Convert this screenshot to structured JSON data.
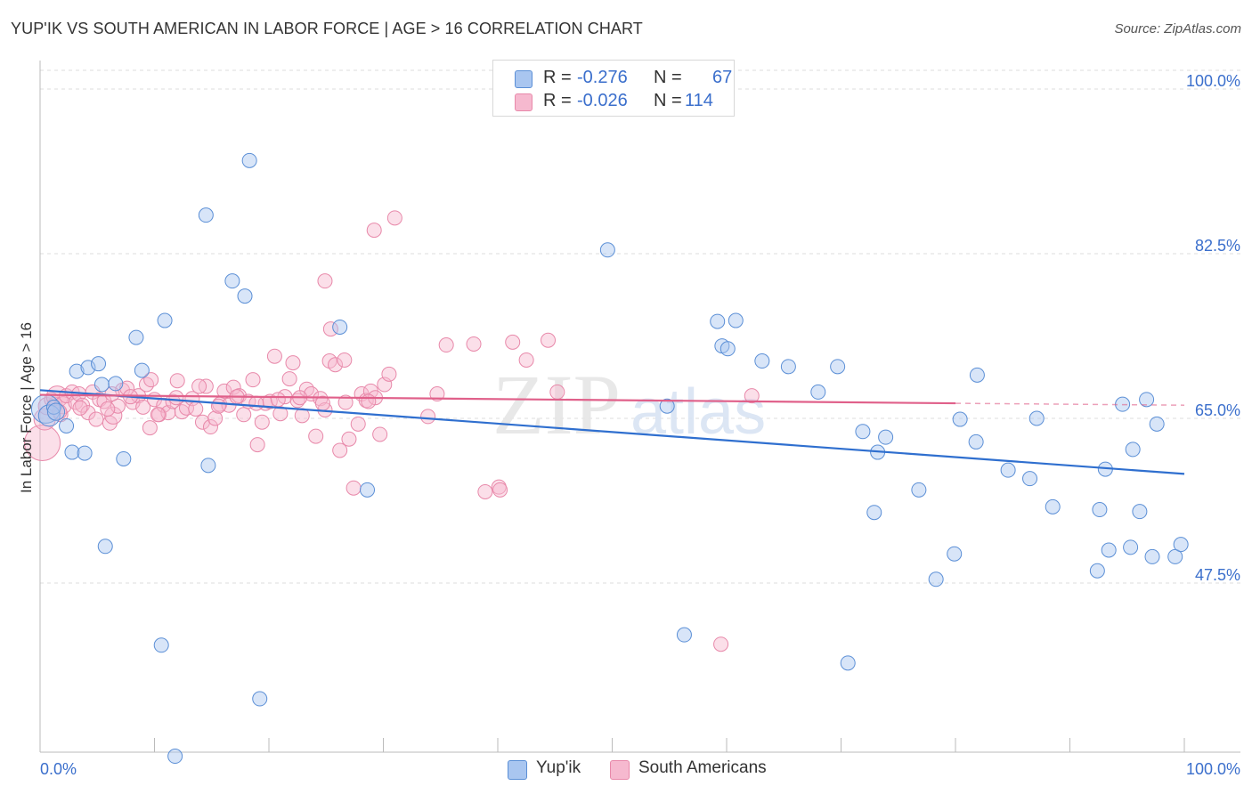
{
  "title": "YUP'IK VS SOUTH AMERICAN IN LABOR FORCE | AGE > 16 CORRELATION CHART",
  "source": "Source: ZipAtlas.com",
  "legend": {
    "rows": [
      {
        "r_label": "R =",
        "r_value": "-0.276",
        "n_label": "N =",
        "n_value": "67"
      },
      {
        "r_label": "R =",
        "r_value": "-0.026",
        "n_label": "N =",
        "n_value": "114"
      }
    ]
  },
  "bottom_legend": {
    "series1": "Yup'ik",
    "series2": "South Americans"
  },
  "watermark": {
    "zip": "ZIP",
    "atlas": "atlas"
  },
  "colors": {
    "blue_fill": "#a9c6f0",
    "blue_stroke": "#5b8fd6",
    "blue_line": "#2f6fcf",
    "pink_fill": "#f6b9cf",
    "pink_stroke": "#e889aa",
    "pink_line": "#e0608a",
    "axis_label": "#3b6fcc",
    "grid": "#dddddd"
  },
  "chart_data": {
    "type": "scatter",
    "title": "YUP'IK VS SOUTH AMERICAN IN LABOR FORCE | AGE > 16 CORRELATION CHART",
    "xlabel": "",
    "ylabel": "In Labor Force | Age > 16",
    "xlim": [
      0,
      100
    ],
    "ylim": [
      30,
      102
    ],
    "x_tick_labels": [
      "0.0%",
      "100.0%"
    ],
    "y_ticks": [
      {
        "value": 100,
        "label": "100.0%"
      },
      {
        "value": 82.5,
        "label": "82.5%"
      },
      {
        "value": 65,
        "label": "65.0%"
      },
      {
        "value": 47.5,
        "label": "47.5%"
      }
    ],
    "grid": "horizontal dashed",
    "legend_position": "top-center",
    "series": [
      {
        "name": "Yup'ik",
        "color": "#a9c6f0",
        "trend": {
          "x": [
            0,
            100
          ],
          "y": [
            68.0,
            59.1
          ],
          "style": "solid"
        },
        "points": [
          [
            0.5,
            66.0,
            2
          ],
          [
            0.8,
            65.3,
            1.5
          ],
          [
            1.2,
            66.2,
            1
          ],
          [
            1.4,
            65.7,
            1.2
          ],
          [
            2.3,
            64.2,
            1
          ],
          [
            2.8,
            61.4,
            1
          ],
          [
            3.2,
            70.0,
            1
          ],
          [
            3.9,
            61.3,
            1
          ],
          [
            4.2,
            70.4,
            1
          ],
          [
            5.1,
            70.8,
            1
          ],
          [
            5.4,
            68.6,
            1
          ],
          [
            5.7,
            51.4,
            1
          ],
          [
            6.6,
            68.7,
            1
          ],
          [
            7.3,
            60.7,
            1
          ],
          [
            8.4,
            73.6,
            1
          ],
          [
            8.9,
            70.1,
            1
          ],
          [
            10.9,
            75.4,
            1
          ],
          [
            10.6,
            40.9,
            1
          ],
          [
            11.8,
            29.1,
            1
          ],
          [
            14.5,
            86.6,
            1
          ],
          [
            14.7,
            60.0,
            1
          ],
          [
            16.8,
            79.6,
            1
          ],
          [
            17.9,
            78.0,
            1
          ],
          [
            18.3,
            92.4,
            1
          ],
          [
            19.2,
            35.2,
            1
          ],
          [
            26.2,
            74.7,
            1
          ],
          [
            28.6,
            57.4,
            1
          ],
          [
            41.4,
            100.6,
            1
          ],
          [
            49.6,
            82.9,
            1
          ],
          [
            54.8,
            66.3,
            1
          ],
          [
            56.3,
            42.0,
            1
          ],
          [
            59.2,
            75.3,
            1
          ],
          [
            59.6,
            72.7,
            1
          ],
          [
            60.1,
            72.4,
            1
          ],
          [
            60.8,
            75.4,
            1
          ],
          [
            63.1,
            71.1,
            1
          ],
          [
            65.4,
            70.5,
            1
          ],
          [
            68.0,
            67.8,
            1
          ],
          [
            69.7,
            70.5,
            1
          ],
          [
            70.6,
            39.0,
            1
          ],
          [
            71.9,
            63.6,
            1
          ],
          [
            72.9,
            55.0,
            1
          ],
          [
            73.2,
            61.4,
            1
          ],
          [
            73.9,
            63.0,
            1
          ],
          [
            76.8,
            57.4,
            1
          ],
          [
            78.3,
            47.9,
            1
          ],
          [
            79.9,
            50.6,
            1
          ],
          [
            80.4,
            64.9,
            1
          ],
          [
            81.8,
            62.5,
            1
          ],
          [
            81.9,
            69.6,
            1
          ],
          [
            84.6,
            59.5,
            1
          ],
          [
            86.5,
            58.6,
            1
          ],
          [
            87.1,
            65.0,
            1
          ],
          [
            88.5,
            55.6,
            1
          ],
          [
            92.4,
            48.8,
            1
          ],
          [
            92.6,
            55.3,
            1
          ],
          [
            93.1,
            59.6,
            1
          ],
          [
            93.4,
            51.0,
            1
          ],
          [
            94.6,
            66.5,
            1
          ],
          [
            95.3,
            51.3,
            1
          ],
          [
            95.5,
            61.7,
            1
          ],
          [
            96.1,
            55.1,
            1
          ],
          [
            96.7,
            67.0,
            1
          ],
          [
            97.2,
            50.3,
            1
          ],
          [
            97.6,
            64.4,
            1
          ],
          [
            99.2,
            50.3,
            1
          ],
          [
            99.7,
            51.6,
            1
          ]
        ]
      },
      {
        "name": "South Americans",
        "color": "#f6b9cf",
        "trend": {
          "x": [
            0,
            80,
            100
          ],
          "y": [
            67.5,
            66.6,
            66.4
          ],
          "style": "solid to 80, dashed to 100"
        },
        "points": [
          [
            0.2,
            62.4,
            2.5
          ],
          [
            0.4,
            64.9,
            1.5
          ],
          [
            0.6,
            66.3,
            1.2
          ],
          [
            1.0,
            67.0,
            1
          ],
          [
            1.3,
            66.5,
            1
          ],
          [
            1.5,
            67.3,
            1.5
          ],
          [
            1.8,
            65.4,
            1
          ],
          [
            2.0,
            66.4,
            1.2
          ],
          [
            2.3,
            67.4,
            1
          ],
          [
            2.8,
            67.8,
            1
          ],
          [
            3.1,
            66.7,
            1
          ],
          [
            3.4,
            67.6,
            1
          ],
          [
            3.7,
            66.4,
            1
          ],
          [
            4.2,
            65.6,
            1
          ],
          [
            4.6,
            67.8,
            1
          ],
          [
            4.9,
            64.9,
            1
          ],
          [
            5.2,
            67.0,
            1
          ],
          [
            5.6,
            66.8,
            1
          ],
          [
            6.1,
            64.5,
            1
          ],
          [
            6.4,
            65.3,
            1.2
          ],
          [
            6.8,
            66.3,
            1
          ],
          [
            7.2,
            68.0,
            1
          ],
          [
            7.6,
            68.2,
            1
          ],
          [
            8.1,
            66.7,
            1
          ],
          [
            8.6,
            67.4,
            1
          ],
          [
            9.0,
            66.2,
            1
          ],
          [
            9.3,
            68.6,
            1
          ],
          [
            9.6,
            64.0,
            1
          ],
          [
            10.0,
            67.0,
            1
          ],
          [
            10.4,
            65.4,
            1
          ],
          [
            10.8,
            66.4,
            1
          ],
          [
            11.2,
            65.6,
            1
          ],
          [
            11.6,
            66.8,
            1
          ],
          [
            12.0,
            69.0,
            1
          ],
          [
            12.4,
            65.7,
            1
          ],
          [
            12.8,
            66.1,
            1
          ],
          [
            13.3,
            67.1,
            1
          ],
          [
            13.6,
            66.0,
            1
          ],
          [
            14.2,
            64.6,
            1
          ],
          [
            14.5,
            68.4,
            1
          ],
          [
            14.9,
            64.1,
            1
          ],
          [
            15.3,
            65.0,
            1
          ],
          [
            15.7,
            66.5,
            1
          ],
          [
            16.1,
            67.9,
            1
          ],
          [
            16.5,
            66.4,
            1
          ],
          [
            16.9,
            68.3,
            1
          ],
          [
            17.4,
            67.4,
            1
          ],
          [
            17.8,
            65.4,
            1
          ],
          [
            18.2,
            66.8,
            1
          ],
          [
            18.6,
            69.1,
            1
          ],
          [
            19.0,
            62.2,
            1
          ],
          [
            19.4,
            64.6,
            1
          ],
          [
            19.7,
            66.6,
            1
          ],
          [
            20.1,
            66.8,
            1
          ],
          [
            20.5,
            71.6,
            1
          ],
          [
            21.0,
            65.5,
            1
          ],
          [
            21.4,
            67.3,
            1
          ],
          [
            21.8,
            69.2,
            1
          ],
          [
            22.1,
            70.9,
            1
          ],
          [
            22.5,
            66.9,
            1
          ],
          [
            22.9,
            65.3,
            1
          ],
          [
            23.3,
            68.1,
            1
          ],
          [
            23.7,
            67.6,
            1
          ],
          [
            24.1,
            63.1,
            1
          ],
          [
            24.5,
            67.1,
            1
          ],
          [
            24.9,
            65.9,
            1
          ],
          [
            25.3,
            71.1,
            1
          ],
          [
            25.8,
            70.7,
            1
          ],
          [
            26.2,
            61.6,
            1
          ],
          [
            26.6,
            71.2,
            1
          ],
          [
            27.0,
            62.8,
            1
          ],
          [
            27.4,
            57.6,
            1
          ],
          [
            27.8,
            64.4,
            1
          ],
          [
            28.1,
            67.6,
            1
          ],
          [
            28.5,
            66.9,
            1
          ],
          [
            28.9,
            67.9,
            1
          ],
          [
            29.3,
            67.2,
            1
          ],
          [
            29.7,
            63.3,
            1
          ],
          [
            30.1,
            68.6,
            1
          ],
          [
            30.5,
            69.7,
            1
          ],
          [
            31.0,
            86.3,
            1
          ],
          [
            29.2,
            85.0,
            1
          ],
          [
            24.9,
            79.6,
            1
          ],
          [
            25.4,
            74.5,
            1
          ],
          [
            34.7,
            67.6,
            1
          ],
          [
            35.5,
            72.8,
            1
          ],
          [
            37.9,
            72.9,
            1
          ],
          [
            38.9,
            57.2,
            1
          ],
          [
            40.1,
            57.7,
            1
          ],
          [
            40.2,
            57.4,
            1
          ],
          [
            41.3,
            73.1,
            1
          ],
          [
            42.5,
            71.2,
            1
          ],
          [
            44.4,
            73.3,
            1
          ],
          [
            45.2,
            67.8,
            1
          ],
          [
            59.5,
            41.0,
            1
          ],
          [
            62.2,
            67.4,
            1
          ],
          [
            33.9,
            65.2,
            1
          ],
          [
            3.5,
            66.1,
            1
          ],
          [
            5.9,
            66.0,
            1
          ],
          [
            7.9,
            67.3,
            1
          ],
          [
            9.7,
            69.1,
            1
          ],
          [
            11.9,
            67.2,
            1
          ],
          [
            13.9,
            68.4,
            1
          ],
          [
            15.6,
            66.3,
            1
          ],
          [
            17.2,
            67.3,
            1
          ],
          [
            18.9,
            66.6,
            1
          ],
          [
            20.8,
            67.0,
            1
          ],
          [
            22.7,
            67.2,
            1
          ],
          [
            24.7,
            66.6,
            1
          ],
          [
            26.7,
            66.7,
            1
          ],
          [
            28.7,
            66.8,
            1
          ],
          [
            1.7,
            65.7,
            1
          ],
          [
            6.3,
            67.6,
            1
          ],
          [
            10.3,
            65.4,
            1
          ]
        ]
      }
    ]
  }
}
